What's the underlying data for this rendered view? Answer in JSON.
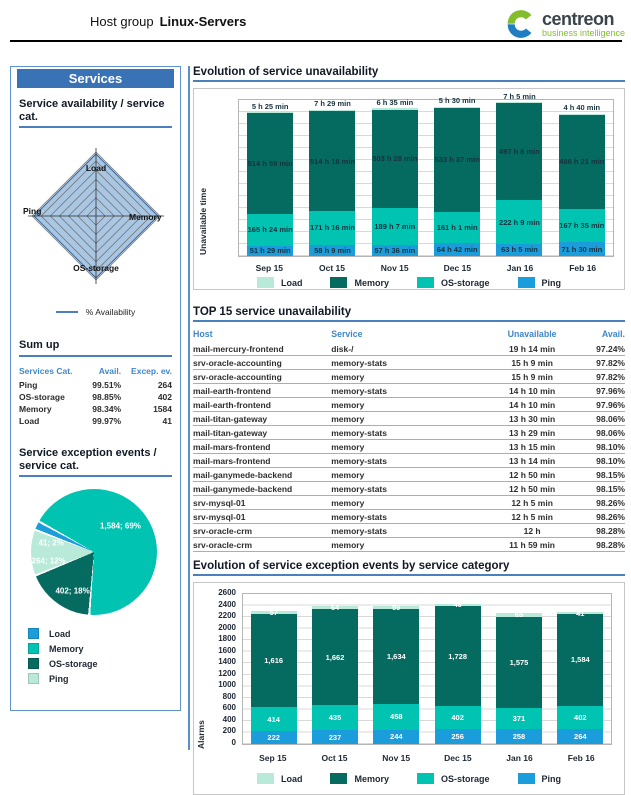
{
  "header": {
    "title_prefix": "Host group",
    "title_name": "Linux-Servers",
    "logo_text": "centreon",
    "logo_subtitle": "business intelligence"
  },
  "sidebar": {
    "title": "Services",
    "availability_heading": "Service availability / service cat.",
    "radar_axes": {
      "top": "Load",
      "right": "Memory",
      "bottom": "OS-storage",
      "left": "Ping"
    },
    "radar_legend": "% Availability",
    "sumup": {
      "title": "Sum up",
      "headers": [
        "Services Cat.",
        "Avail.",
        "Excep. ev."
      ],
      "rows": [
        {
          "cat": "Ping",
          "avail": "99.51%",
          "events": "264"
        },
        {
          "cat": "OS-storage",
          "avail": "98.85%",
          "events": "402"
        },
        {
          "cat": "Memory",
          "avail": "98.34%",
          "events": "1584"
        },
        {
          "cat": "Load",
          "avail": "99.97%",
          "events": "41"
        }
      ]
    },
    "pie_heading": "Service exception events / service cat.",
    "pie_legend": [
      {
        "label": "Load",
        "color": "#1b9ddb"
      },
      {
        "label": "Memory",
        "color": "#00c3b2"
      },
      {
        "label": "OS-storage",
        "color": "#056a60"
      },
      {
        "label": "Ping",
        "color": "#b9e9d9"
      }
    ]
  },
  "main": {
    "chart1_title": "Evolution of service unavailability",
    "table_title": "TOP 15 service unavailability",
    "chart2_title": "Evolution of service exception events by service category",
    "table": {
      "headers": [
        "Host",
        "Service",
        "Unavailable",
        "Avail."
      ],
      "rows": [
        [
          "mail-mercury-frontend",
          "disk-/",
          "19 h 14 min",
          "97.24%"
        ],
        [
          "srv-oracle-accounting",
          "memory-stats",
          "15 h 9 min",
          "97.82%"
        ],
        [
          "srv-oracle-accounting",
          "memory",
          "15 h 9 min",
          "97.82%"
        ],
        [
          "mail-earth-frontend",
          "memory-stats",
          "14 h 10 min",
          "97.96%"
        ],
        [
          "mail-earth-frontend",
          "memory",
          "14 h 10 min",
          "97.96%"
        ],
        [
          "mail-titan-gateway",
          "memory",
          "13 h 30 min",
          "98.06%"
        ],
        [
          "mail-titan-gateway",
          "memory-stats",
          "13 h 29 min",
          "98.06%"
        ],
        [
          "mail-mars-frontend",
          "memory",
          "13 h 15 min",
          "98.10%"
        ],
        [
          "mail-mars-frontend",
          "memory-stats",
          "13 h 14 min",
          "98.10%"
        ],
        [
          "mail-ganymede-backend",
          "memory",
          "12 h 50 min",
          "98.15%"
        ],
        [
          "mail-ganymede-backend",
          "memory-stats",
          "12 h 50 min",
          "98.15%"
        ],
        [
          "srv-mysql-01",
          "memory",
          "12 h 5 min",
          "98.26%"
        ],
        [
          "srv-mysql-01",
          "memory-stats",
          "12 h 5 min",
          "98.26%"
        ],
        [
          "srv-oracle-crm",
          "memory-stats",
          "12 h",
          "98.28%"
        ],
        [
          "srv-oracle-crm",
          "memory",
          "11 h 59 min",
          "98.28%"
        ]
      ]
    }
  },
  "chart_data": [
    {
      "id": "unavailability",
      "type": "bar",
      "stacked": true,
      "title": "Evolution of service unavailability",
      "xlabel": "",
      "ylabel": "Unavailable time",
      "categories": [
        "Sep 15",
        "Oct 15",
        "Nov 15",
        "Dec 15",
        "Jan 16",
        "Feb 16"
      ],
      "ylim": [
        0,
        800
      ],
      "unit": "hours",
      "grid": true,
      "legend_position": "bottom",
      "series": [
        {
          "name": "Ping",
          "color": "#1b9ddb",
          "values": [
            51.48,
            58.15,
            57.6,
            64.7,
            63.08,
            71.5
          ],
          "labels": [
            "51 h 29 min",
            "58 h 9 min",
            "57 h 36 min",
            "64 h 42 min",
            "63 h 5 min",
            "71 h 30 min"
          ]
        },
        {
          "name": "OS-storage",
          "color": "#00c3b2",
          "values": [
            165.4,
            171.27,
            189.12,
            161.02,
            222.15,
            167.58
          ],
          "labels": [
            "165 h 24 min",
            "171 h 16 min",
            "189 h 7 min",
            "161 h 1 min",
            "222 h 9 min",
            "167 h 35 min"
          ]
        },
        {
          "name": "Memory",
          "color": "#056a60",
          "values": [
            514.98,
            514.3,
            503.47,
            533.62,
            497.1,
            486.35
          ],
          "labels": [
            "514 h 59 min",
            "514 h 18 min",
            "503 h 28 min",
            "533 h 37 min",
            "497 h 6 min",
            "486 h 21 min"
          ]
        },
        {
          "name": "Load",
          "color": "#b9e9d9",
          "values": [
            5.42,
            7.48,
            6.58,
            5.5,
            7.08,
            4.67
          ],
          "labels": [
            "5 h 25 min",
            "7 h 29 min",
            "6 h 35 min",
            "5 h 30 min",
            "7 h 5 min",
            "4 h 40 min"
          ],
          "label_placement": "above"
        }
      ],
      "legend": [
        "Load",
        "Memory",
        "OS-storage",
        "Ping"
      ]
    },
    {
      "id": "exception-pie",
      "type": "pie",
      "title": "Service exception events / service cat.",
      "start_angle_deg": 300,
      "slices": [
        {
          "name": "Memory",
          "value": 1584,
          "pct": 69,
          "label": "1,584; 69%",
          "color": "#00c3b2"
        },
        {
          "name": "OS-storage",
          "value": 402,
          "pct": 18,
          "label": "402; 18%",
          "color": "#056a60"
        },
        {
          "name": "Ping",
          "value": 264,
          "pct": 12,
          "label": "264; 12%",
          "color": "#b9e9d9"
        },
        {
          "name": "Load",
          "value": 41,
          "pct": 2,
          "label": "41; 2%",
          "color": "#1b9ddb"
        }
      ]
    },
    {
      "id": "exception-events",
      "type": "bar",
      "stacked": true,
      "title": "Evolution of service exception events by service category",
      "xlabel": "",
      "ylabel": "Alarms",
      "categories": [
        "Sep 15",
        "Oct 15",
        "Nov 15",
        "Dec 15",
        "Jan 16",
        "Feb 16"
      ],
      "ylim": [
        0,
        2600
      ],
      "ytick_step": 200,
      "grid": true,
      "legend_position": "bottom",
      "series": [
        {
          "name": "Ping",
          "color": "#1b9ddb",
          "values": [
            222,
            237,
            244,
            256,
            258,
            264
          ],
          "labels": [
            "222",
            "237",
            "244",
            "256",
            "258",
            "264"
          ]
        },
        {
          "name": "OS-storage",
          "color": "#00c3b2",
          "values": [
            414,
            435,
            458,
            402,
            371,
            402
          ],
          "labels": [
            "414",
            "435",
            "458",
            "402",
            "371",
            "402"
          ]
        },
        {
          "name": "Memory",
          "color": "#056a60",
          "values": [
            1616,
            1662,
            1634,
            1728,
            1575,
            1584
          ],
          "labels": [
            "1,616",
            "1,662",
            "1,634",
            "1,728",
            "1,575",
            "1,584"
          ]
        },
        {
          "name": "Load",
          "color": "#b9e9d9",
          "values": [
            57,
            64,
            59,
            48,
            65,
            41
          ],
          "labels": [
            "57",
            "64",
            "59",
            "48",
            "65",
            "41"
          ]
        }
      ],
      "legend": [
        "Load",
        "Memory",
        "OS-storage",
        "Ping"
      ]
    }
  ],
  "colors": {
    "accent_blue": "#4a7fc0",
    "table_header_blue": "#3f87c9",
    "load": "#b9e9d9",
    "memory": "#056a60",
    "os_storage": "#00c3b2",
    "ping": "#1b9ddb",
    "logo_green": "#83bd2e",
    "logo_blue": "#1f7ec2",
    "radar_fill": "#a9c6e3"
  }
}
